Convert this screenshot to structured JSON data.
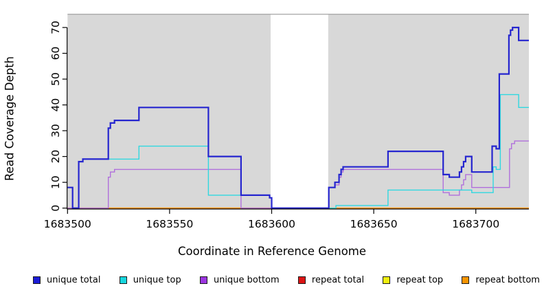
{
  "chart_data": {
    "type": "line",
    "subtype": "step-after",
    "title": "",
    "xlabel": "Coordinate in Reference Genome",
    "ylabel": "Read Coverage Depth",
    "xlim": [
      1683500,
      1683726
    ],
    "ylim": [
      0,
      70
    ],
    "x_ticks": [
      1683500,
      1683550,
      1683600,
      1683650,
      1683700
    ],
    "y_ticks": [
      0,
      10,
      20,
      30,
      40,
      50,
      60,
      70
    ],
    "grid": false,
    "legend_position": "bottom",
    "panel": {
      "color": "#d8d8d8",
      "top_border_color": "#8f8f8f",
      "masked_region": {
        "from": 1683599.5,
        "to": 1683627.7
      }
    },
    "legend": [
      {
        "label": "unique total",
        "color": "#1c1cd6"
      },
      {
        "label": "unique top",
        "color": "#17d6de"
      },
      {
        "label": "unique bottom",
        "color": "#9b35e0"
      },
      {
        "label": "repeat total",
        "color": "#dc1414"
      },
      {
        "label": "repeat top",
        "color": "#efef10"
      },
      {
        "label": "repeat bottom",
        "color": "#f79500"
      }
    ],
    "series": [
      {
        "name": "repeat total",
        "color": "#dc1414",
        "width": 1.4,
        "points": [
          [
            1683500,
            0
          ],
          [
            1683726,
            0
          ]
        ]
      },
      {
        "name": "repeat top",
        "color": "#efef10",
        "width": 1.4,
        "points": [
          [
            1683500,
            0
          ],
          [
            1683726,
            0
          ]
        ]
      },
      {
        "name": "repeat bottom",
        "color": "#f79500",
        "width": 1.6,
        "points": [
          [
            1683500,
            0
          ],
          [
            1683726,
            0
          ]
        ]
      },
      {
        "name": "unique bottom",
        "color": "#b06fdc",
        "width": 1.4,
        "points": [
          [
            1683500,
            0
          ],
          [
            1683520,
            12
          ],
          [
            1683521,
            14
          ],
          [
            1683523,
            15
          ],
          [
            1683585,
            0
          ],
          [
            1683628,
            8
          ],
          [
            1683631,
            9
          ],
          [
            1683633,
            12
          ],
          [
            1683634,
            14
          ],
          [
            1683635,
            15
          ],
          [
            1683684,
            6
          ],
          [
            1683687,
            5
          ],
          [
            1683692,
            7
          ],
          [
            1683693,
            9
          ],
          [
            1683694,
            11
          ],
          [
            1683695,
            13
          ],
          [
            1683698,
            8
          ],
          [
            1683716.5,
            23
          ],
          [
            1683717.5,
            25
          ],
          [
            1683719,
            26
          ],
          [
            1683726,
            26
          ]
        ]
      },
      {
        "name": "unique top",
        "color": "#2fd8e0",
        "width": 1.4,
        "points": [
          [
            1683500,
            8
          ],
          [
            1683502.5,
            0
          ],
          [
            1683505.5,
            18
          ],
          [
            1683507.5,
            19
          ],
          [
            1683535,
            24
          ],
          [
            1683569,
            5
          ],
          [
            1683599,
            4
          ],
          [
            1683600,
            0
          ],
          [
            1683631.5,
            1
          ],
          [
            1683657,
            7
          ],
          [
            1683698,
            6
          ],
          [
            1683708.5,
            16
          ],
          [
            1683710,
            15
          ],
          [
            1683712,
            44
          ],
          [
            1683721,
            39
          ],
          [
            1683726,
            39
          ]
        ]
      },
      {
        "name": "unique total",
        "color": "#2525cf",
        "width": 2.2,
        "points": [
          [
            1683500,
            8
          ],
          [
            1683502.5,
            0
          ],
          [
            1683505.5,
            18
          ],
          [
            1683507.5,
            19
          ],
          [
            1683520,
            31
          ],
          [
            1683521,
            33
          ],
          [
            1683523,
            34
          ],
          [
            1683535,
            39
          ],
          [
            1683569,
            20
          ],
          [
            1683585,
            5
          ],
          [
            1683599,
            4
          ],
          [
            1683600,
            0
          ],
          [
            1683628,
            8
          ],
          [
            1683631,
            10
          ],
          [
            1683633,
            13
          ],
          [
            1683634,
            15
          ],
          [
            1683635,
            16
          ],
          [
            1683657,
            22
          ],
          [
            1683684,
            13
          ],
          [
            1683687,
            12
          ],
          [
            1683692,
            14
          ],
          [
            1683693,
            16
          ],
          [
            1683694,
            18
          ],
          [
            1683695,
            20
          ],
          [
            1683698,
            14
          ],
          [
            1683708,
            24
          ],
          [
            1683710,
            23
          ],
          [
            1683711.5,
            52
          ],
          [
            1683716.2,
            67
          ],
          [
            1683717,
            69
          ],
          [
            1683718,
            70
          ],
          [
            1683721,
            65
          ],
          [
            1683726,
            65
          ]
        ]
      }
    ]
  }
}
